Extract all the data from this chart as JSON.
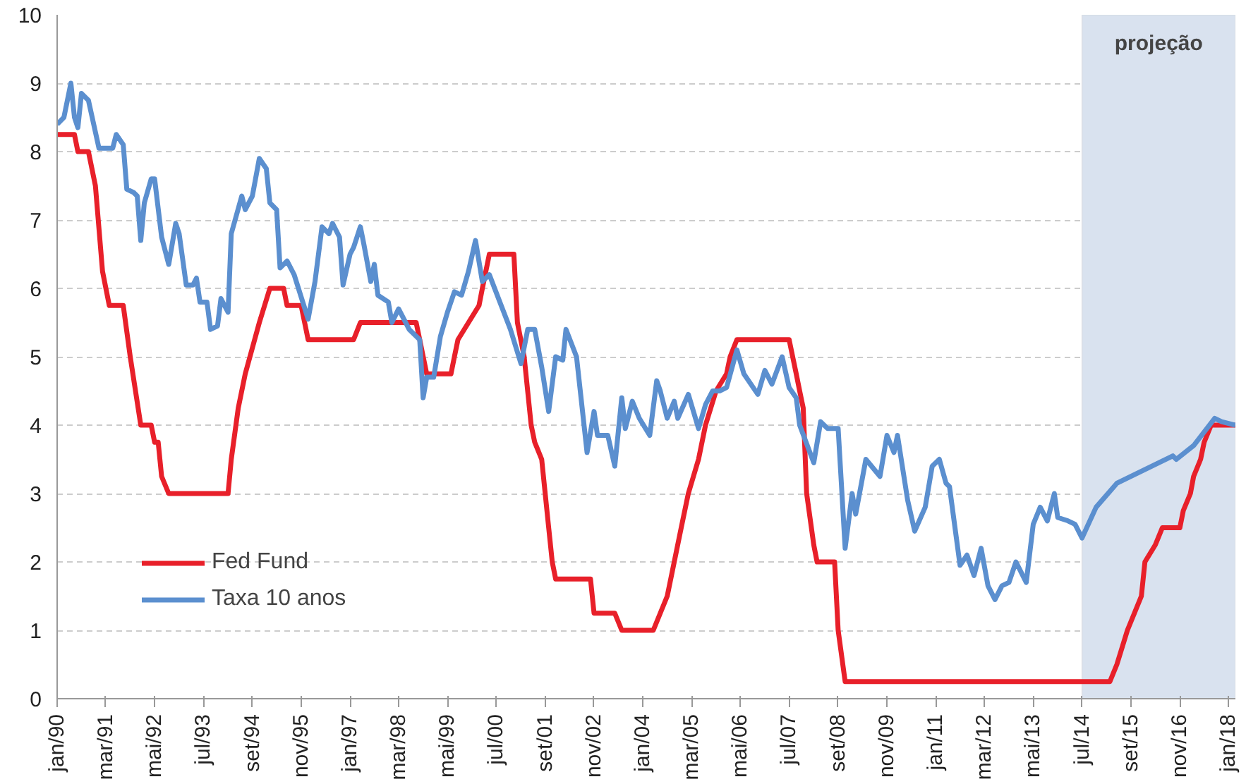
{
  "chart_data": {
    "type": "line",
    "line_style": "solid",
    "marker": "none",
    "grid": "y",
    "legend": "bottom left",
    "xlim": [
      "1990-01",
      "2018-03"
    ],
    "ylim": [
      0,
      10
    ],
    "yticks": [
      0,
      1,
      2,
      3,
      4,
      5,
      6,
      7,
      8,
      9,
      10
    ],
    "xticks": [
      {
        "value": "1990-01",
        "label": "jan/90"
      },
      {
        "value": "1991-03",
        "label": "mar/91"
      },
      {
        "value": "1992-05",
        "label": "mai/92"
      },
      {
        "value": "1993-07",
        "label": "jul/93"
      },
      {
        "value": "1994-09",
        "label": "set/94"
      },
      {
        "value": "1995-11",
        "label": "nov/95"
      },
      {
        "value": "1997-01",
        "label": "jan/97"
      },
      {
        "value": "1998-03",
        "label": "mar/98"
      },
      {
        "value": "1999-05",
        "label": "mai/99"
      },
      {
        "value": "2000-07",
        "label": "jul/00"
      },
      {
        "value": "2001-09",
        "label": "set/01"
      },
      {
        "value": "2002-11",
        "label": "nov/02"
      },
      {
        "value": "2004-01",
        "label": "jan/04"
      },
      {
        "value": "2005-03",
        "label": "mar/05"
      },
      {
        "value": "2006-05",
        "label": "mai/06"
      },
      {
        "value": "2007-07",
        "label": "jul/07"
      },
      {
        "value": "2008-09",
        "label": "set/08"
      },
      {
        "value": "2009-11",
        "label": "nov/09"
      },
      {
        "value": "2011-01",
        "label": "jan/11"
      },
      {
        "value": "2012-03",
        "label": "mar/12"
      },
      {
        "value": "2013-05",
        "label": "mai/13"
      },
      {
        "value": "2014-07",
        "label": "jul/14"
      },
      {
        "value": "2015-09",
        "label": "set/15"
      },
      {
        "value": "2016-11",
        "label": "nov/16"
      },
      {
        "value": "2018-01",
        "label": "jan/18"
      }
    ],
    "bands": [
      {
        "axis": "x",
        "from": "2014-07",
        "to": "2018-03",
        "label": "projeção",
        "color": "#d9e2ef"
      }
    ],
    "series": [
      {
        "name": "Fed Fund",
        "color": "#e8202a",
        "x": [
          "1990-01",
          "1990-06",
          "1990-07",
          "1990-10",
          "1990-12",
          "1991-02",
          "1991-04",
          "1991-08",
          "1991-10",
          "1992-01",
          "1992-04",
          "1992-05",
          "1992-06",
          "1992-07",
          "1992-09",
          "1994-02",
          "1994-03",
          "1994-05",
          "1994-07",
          "1994-11",
          "1995-02",
          "1995-06",
          "1995-07",
          "1995-11",
          "1996-01",
          "1997-02",
          "1997-04",
          "1998-08",
          "1998-09",
          "1998-11",
          "1999-06",
          "1999-07",
          "1999-08",
          "1999-11",
          "2000-02",
          "2000-03",
          "2000-05",
          "2000-12",
          "2001-01",
          "2001-03",
          "2001-05",
          "2001-06",
          "2001-08",
          "2001-10",
          "2001-11",
          "2001-12",
          "2002-10",
          "2002-11",
          "2003-05",
          "2003-07",
          "2004-04",
          "2004-06",
          "2004-08",
          "2004-10",
          "2004-12",
          "2005-02",
          "2005-05",
          "2005-07",
          "2005-10",
          "2006-01",
          "2006-02",
          "2006-04",
          "2007-07",
          "2007-09",
          "2007-10",
          "2007-11",
          "2007-12",
          "2008-02",
          "2008-03",
          "2008-08",
          "2008-09",
          "2008-11",
          "2015-03",
          "2015-05",
          "2015-08",
          "2015-10",
          "2015-12",
          "2016-01",
          "2016-04",
          "2016-06",
          "2016-11",
          "2016-12",
          "2017-02",
          "2017-03",
          "2017-05",
          "2017-06",
          "2017-08",
          "2018-03"
        ],
        "values": [
          8.25,
          8.25,
          8.0,
          8.0,
          7.5,
          6.25,
          5.75,
          5.75,
          5.0,
          4.0,
          4.0,
          3.75,
          3.75,
          3.25,
          3.0,
          3.0,
          3.5,
          4.25,
          4.75,
          5.5,
          6.0,
          6.0,
          5.75,
          5.75,
          5.25,
          5.25,
          5.5,
          5.5,
          5.25,
          4.75,
          4.75,
          5.0,
          5.25,
          5.5,
          5.75,
          6.0,
          6.5,
          6.5,
          5.5,
          5.0,
          4.0,
          3.75,
          3.5,
          2.5,
          2.0,
          1.75,
          1.75,
          1.25,
          1.25,
          1.0,
          1.0,
          1.25,
          1.5,
          2.0,
          2.5,
          3.0,
          3.5,
          4.0,
          4.5,
          4.75,
          5.0,
          5.25,
          5.25,
          4.75,
          4.5,
          4.25,
          3.0,
          2.25,
          2.0,
          2.0,
          1.0,
          0.25,
          0.25,
          0.5,
          1.0,
          1.25,
          1.5,
          2.0,
          2.25,
          2.5,
          2.5,
          2.75,
          3.0,
          3.25,
          3.5,
          3.75,
          4.0,
          4.0
        ]
      },
      {
        "name": "Taxa 10 anos",
        "color": "#5b8fcf",
        "x": [
          "1990-01",
          "1990-03",
          "1990-05",
          "1990-06",
          "1990-07",
          "1990-08",
          "1990-10",
          "1991-01",
          "1991-04",
          "1991-05",
          "1991-06",
          "1991-08",
          "1991-09",
          "1991-11",
          "1991-12",
          "1992-01",
          "1992-02",
          "1992-04",
          "1992-05",
          "1992-07",
          "1992-09",
          "1992-11",
          "1992-12",
          "1993-02",
          "1993-04",
          "1993-05",
          "1993-06",
          "1993-08",
          "1993-09",
          "1993-11",
          "1993-12",
          "1994-02",
          "1994-03",
          "1994-06",
          "1994-07",
          "1994-09",
          "1994-11",
          "1995-01",
          "1995-02",
          "1995-04",
          "1995-05",
          "1995-07",
          "1995-09",
          "1996-01",
          "1996-03",
          "1996-05",
          "1996-07",
          "1996-08",
          "1996-10",
          "1996-11",
          "1997-01",
          "1997-02",
          "1997-04",
          "1997-05",
          "1997-07",
          "1997-08",
          "1997-09",
          "1997-12",
          "1998-01",
          "1998-03",
          "1998-06",
          "1998-09",
          "1998-10",
          "1998-11",
          "1999-01",
          "1999-03",
          "1999-05",
          "1999-07",
          "1999-09",
          "1999-11",
          "2000-01",
          "2000-03",
          "2000-05",
          "2000-08",
          "2000-11",
          "2001-02",
          "2001-04",
          "2001-06",
          "2001-08",
          "2001-10",
          "2001-12",
          "2002-02",
          "2002-03",
          "2002-06",
          "2002-09",
          "2002-11",
          "2002-12",
          "2003-03",
          "2003-05",
          "2003-07",
          "2003-08",
          "2003-10",
          "2003-12",
          "2004-03",
          "2004-05",
          "2004-06",
          "2004-08",
          "2004-10",
          "2004-11",
          "2005-02",
          "2005-05",
          "2005-07",
          "2005-09",
          "2005-11",
          "2006-01",
          "2006-04",
          "2006-06",
          "2006-10",
          "2006-12",
          "2007-02",
          "2007-05",
          "2007-07",
          "2007-09",
          "2007-10",
          "2008-02",
          "2008-04",
          "2008-06",
          "2008-09",
          "2008-11",
          "2009-01",
          "2009-02",
          "2009-05",
          "2009-09",
          "2009-11",
          "2010-01",
          "2010-02",
          "2010-05",
          "2010-07",
          "2010-10",
          "2010-12",
          "2011-02",
          "2011-04",
          "2011-05",
          "2011-08",
          "2011-10",
          "2011-12",
          "2012-02",
          "2012-04",
          "2012-06",
          "2012-08",
          "2012-10",
          "2012-12",
          "2013-03",
          "2013-05",
          "2013-07",
          "2013-09",
          "2013-11",
          "2013-12",
          "2014-03",
          "2014-05",
          "2014-07",
          "2014-11",
          "2015-05",
          "2016-09",
          "2016-10",
          "2017-03",
          "2017-09",
          "2017-11",
          "2018-03"
        ],
        "values": [
          8.4,
          8.5,
          9.0,
          8.5,
          8.35,
          8.85,
          8.75,
          8.05,
          8.05,
          8.05,
          8.25,
          8.1,
          7.45,
          7.4,
          7.35,
          6.7,
          7.25,
          7.6,
          7.6,
          6.75,
          6.35,
          6.95,
          6.8,
          6.05,
          6.05,
          6.15,
          5.8,
          5.8,
          5.4,
          5.45,
          5.85,
          5.65,
          6.8,
          7.35,
          7.15,
          7.35,
          7.9,
          7.75,
          7.25,
          7.15,
          6.3,
          6.4,
          6.2,
          5.55,
          6.1,
          6.9,
          6.8,
          6.95,
          6.75,
          6.05,
          6.5,
          6.6,
          6.9,
          6.65,
          6.1,
          6.35,
          5.9,
          5.8,
          5.5,
          5.7,
          5.4,
          5.25,
          4.4,
          4.7,
          4.7,
          5.3,
          5.65,
          5.95,
          5.9,
          6.25,
          6.7,
          6.1,
          6.2,
          5.8,
          5.4,
          4.9,
          5.4,
          5.4,
          4.85,
          4.2,
          5.0,
          4.95,
          5.4,
          5.0,
          3.6,
          4.2,
          3.85,
          3.85,
          3.4,
          4.4,
          3.95,
          4.35,
          4.1,
          3.85,
          4.65,
          4.5,
          4.1,
          4.35,
          4.1,
          4.45,
          3.95,
          4.3,
          4.5,
          4.5,
          4.55,
          5.1,
          4.75,
          4.45,
          4.8,
          4.6,
          5.0,
          4.55,
          4.4,
          4.0,
          3.45,
          4.05,
          3.95,
          3.95,
          2.2,
          3.0,
          2.7,
          3.5,
          3.25,
          3.85,
          3.6,
          3.85,
          2.9,
          2.45,
          2.8,
          3.4,
          3.5,
          3.15,
          3.1,
          1.95,
          2.1,
          1.8,
          2.2,
          1.65,
          1.45,
          1.65,
          1.7,
          2.0,
          1.7,
          2.55,
          2.8,
          2.6,
          3.0,
          2.65,
          2.6,
          2.55,
          2.35,
          2.8,
          3.15,
          3.55,
          3.5,
          3.7,
          4.1,
          4.05,
          4.0
        ]
      }
    ]
  }
}
